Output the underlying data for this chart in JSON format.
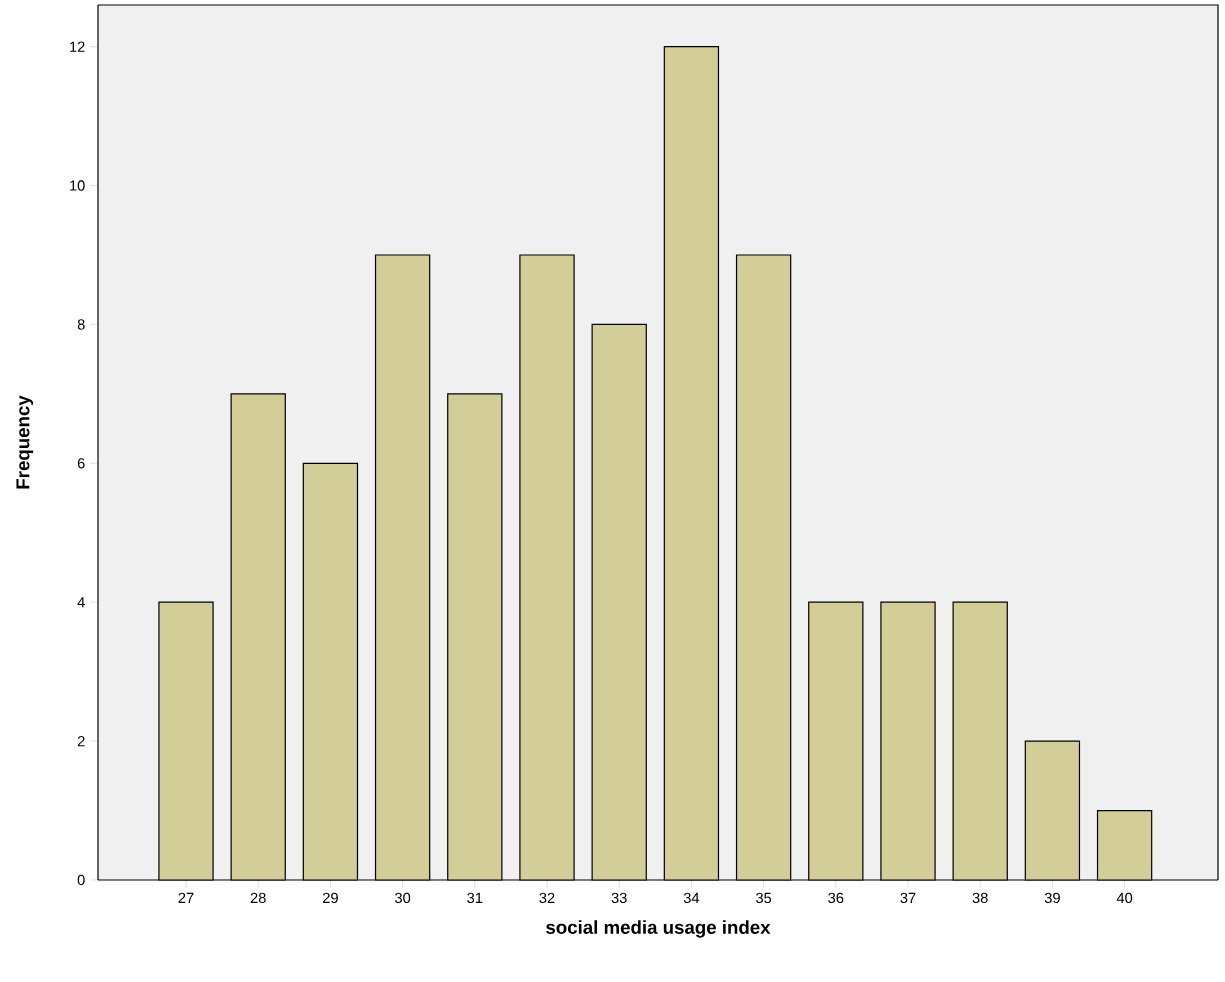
{
  "chart_data": {
    "type": "bar",
    "xlabel": "social media usage index",
    "ylabel": "Frequency",
    "categories": [
      "27",
      "28",
      "29",
      "30",
      "31",
      "32",
      "33",
      "34",
      "35",
      "36",
      "37",
      "38",
      "39",
      "40"
    ],
    "values": [
      4,
      7,
      6,
      9,
      7,
      9,
      8,
      12,
      9,
      4,
      4,
      4,
      2,
      1
    ],
    "color": "#d3cd97",
    "ylim": [
      0,
      12.6
    ],
    "yticks": [
      0,
      2,
      4,
      6,
      8,
      10,
      12
    ]
  }
}
